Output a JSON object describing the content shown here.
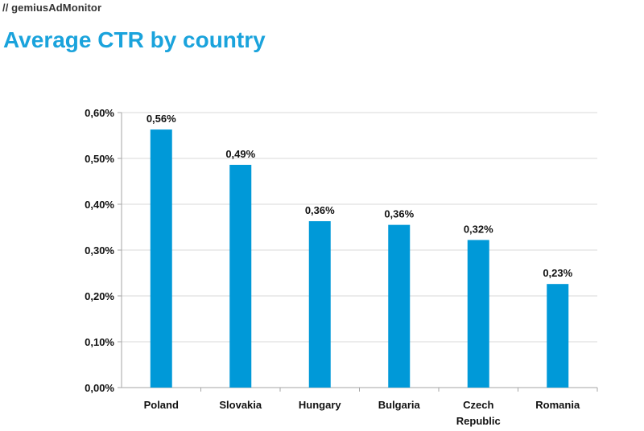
{
  "header": {
    "brand": "// gemiusAdMonitor"
  },
  "chart_data": {
    "type": "bar",
    "title": "Average CTR by country",
    "xlabel": "",
    "ylabel": "",
    "categories": [
      "Poland",
      "Slovakia",
      "Hungary",
      "Bulgaria",
      "Czech Republic",
      "Romania"
    ],
    "category_lines": [
      [
        "Poland"
      ],
      [
        "Slovakia"
      ],
      [
        "Hungary"
      ],
      [
        "Bulgaria"
      ],
      [
        "Czech",
        "Republic"
      ],
      [
        "Romania"
      ]
    ],
    "values": [
      0.563,
      0.486,
      0.363,
      0.355,
      0.322,
      0.226
    ],
    "data_labels": [
      "0,56%",
      "0,49%",
      "0,36%",
      "0,36%",
      "0,32%",
      "0,23%"
    ],
    "ylim": [
      0,
      0.6
    ],
    "yticks": [
      0,
      0.1,
      0.2,
      0.3,
      0.4,
      0.5,
      0.6
    ],
    "ytick_labels": [
      "0,00%",
      "0,10%",
      "0,20%",
      "0,30%",
      "0,40%",
      "0,50%",
      "0,60%"
    ],
    "grid": true,
    "bar_color": "#0099d8",
    "grid_color": "#d9d9d9",
    "axis_color": "#a6a6a6"
  }
}
